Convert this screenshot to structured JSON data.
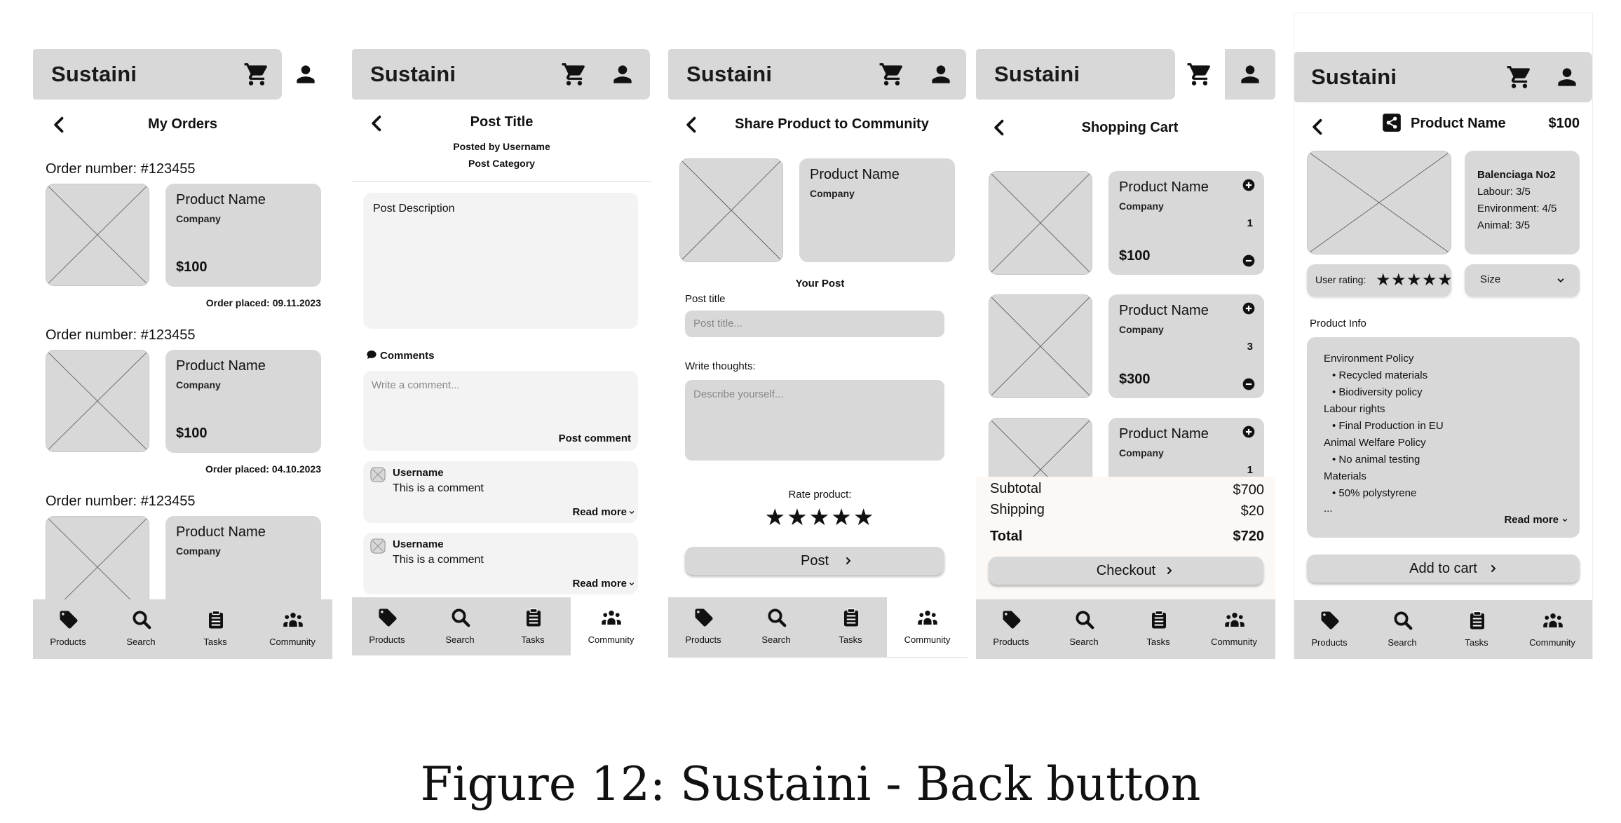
{
  "app": {
    "brand": "Sustaini"
  },
  "nav": {
    "products": "Products",
    "search": "Search",
    "tasks": "Tasks",
    "community": "Community"
  },
  "orders": {
    "title": "My Orders",
    "items": [
      {
        "order": "Order number: #123455",
        "name": "Product Name",
        "company": "Company",
        "price": "$100",
        "placed": "Order placed: 09.11.2023"
      },
      {
        "order": "Order number: #123455",
        "name": "Product Name",
        "company": "Company",
        "price": "$100",
        "placed": "Order placed: 04.10.2023"
      },
      {
        "order": "Order number: #123455",
        "name": "Product Name",
        "company": "Company"
      }
    ]
  },
  "post": {
    "title": "Post Title",
    "by": "Posted by Username",
    "category": "Post Category",
    "description": "Post Description",
    "comments_label": "Comments",
    "comment_placeholder": "Write a comment...",
    "post_comment": "Post comment",
    "comments": [
      {
        "user": "Username",
        "text": "This is a comment",
        "more": "Read more"
      },
      {
        "user": "Username",
        "text": "This is a comment",
        "more": "Read more"
      }
    ]
  },
  "share": {
    "title": "Share Product to Community",
    "name": "Product Name",
    "company": "Company",
    "your_post": "Your Post",
    "post_title_label": "Post title",
    "post_title_placeholder": "Post title...",
    "thoughts_label": "Write thoughts:",
    "thoughts_placeholder": "Describe yourself...",
    "rate_label": "Rate product:",
    "stars": "★★★★★",
    "post_button": "Post"
  },
  "cart": {
    "title": "Shopping Cart",
    "items": [
      {
        "name": "Product Name",
        "company": "Company",
        "qty": "1",
        "price": "$100"
      },
      {
        "name": "Product Name",
        "company": "Company",
        "qty": "3",
        "price": "$300"
      },
      {
        "name": "Product Name",
        "company": "Company",
        "qty": "1"
      }
    ],
    "subtotal_label": "Subtotal",
    "subtotal": "$700",
    "shipping_label": "Shipping",
    "shipping": "$20",
    "total_label": "Total",
    "total": "$720",
    "checkout": "Checkout"
  },
  "product": {
    "name": "Product Name",
    "price": "$100",
    "brand": "Balenciaga No2",
    "labour": "Labour: 3/5",
    "environment": "Environment: 4/5",
    "animal": "Animal: 3/5",
    "user_rating": "User rating:",
    "stars": "★★★★★",
    "size": "Size",
    "info_label": "Product Info",
    "info": {
      "env_policy": "Environment Policy",
      "env_1": "Recycled materials",
      "env_2": "Biodiversity policy",
      "labour": "Labour rights",
      "labour_1": "Final Production in EU",
      "animal": "Animal Welfare Policy",
      "animal_1": "No animal testing",
      "materials": "Materials",
      "materials_1": "50% polystyrene",
      "ellipsis": "..."
    },
    "read_more": "Read more",
    "add_to_cart": "Add to cart"
  },
  "caption": "Figure 12: Sustaini - Back button"
}
